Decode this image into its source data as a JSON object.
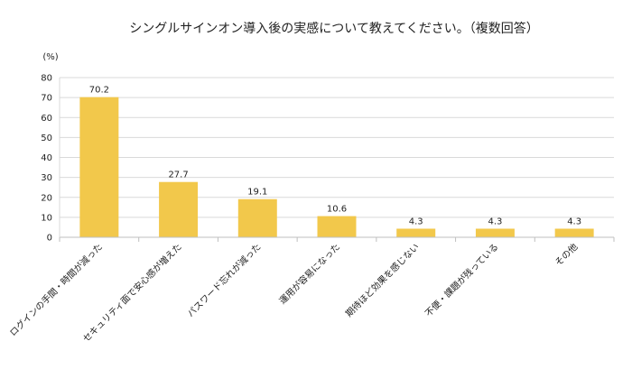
{
  "chart_data": {
    "type": "bar",
    "title": "シングルサインオン導入後の実感について教えてください。（複数回答）",
    "unit_label": "(%)",
    "categories": [
      "ログインの手間・時間が減った",
      "セキュリティ面で安心感が増えた",
      "パスワード忘れが減った",
      "運用が容易になった",
      "期待ほど効果を感じない",
      "不便・課題が残っている",
      "その他"
    ],
    "values": [
      70.2,
      27.7,
      19.1,
      10.6,
      4.3,
      4.3,
      4.3
    ],
    "value_labels": [
      "70.2",
      "27.7",
      "19.1",
      "10.6",
      "4.3",
      "4.3",
      "4.3"
    ],
    "ylim": [
      0,
      80
    ],
    "yticks": [
      0,
      10,
      20,
      30,
      40,
      50,
      60,
      70,
      80
    ],
    "grid": true,
    "legend": "none",
    "bar_color": "#f2c84b",
    "grid_color": "#d9d9d9",
    "axis_color": "#bfbfbf",
    "text_color": "#222222"
  }
}
